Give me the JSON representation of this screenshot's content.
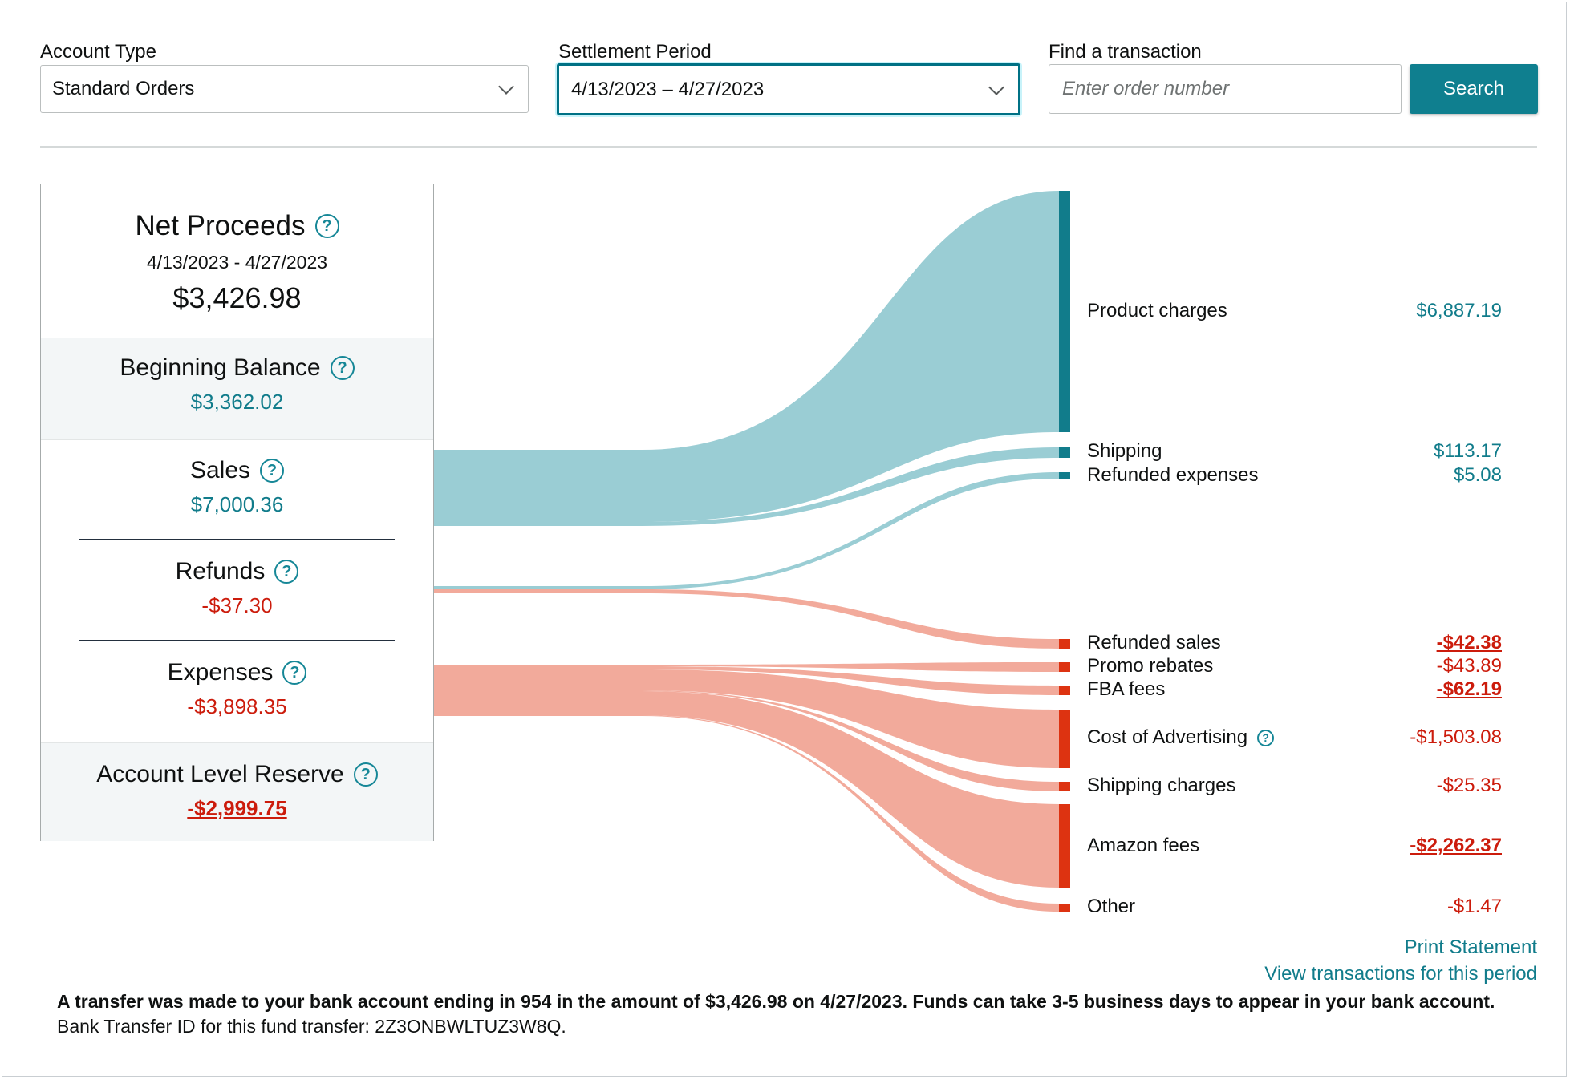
{
  "filters": {
    "account_type_label": "Account Type",
    "account_type_value": "Standard Orders",
    "settlement_label": "Settlement Period",
    "settlement_value": "4/13/2023 – 4/27/2023",
    "find_label": "Find a transaction",
    "find_placeholder": "Enter order number",
    "search_button": "Search"
  },
  "summary": {
    "net_proceeds_title": "Net Proceeds",
    "net_proceeds_dates": "4/13/2023 - 4/27/2023",
    "net_proceeds_value": "$3,426.98",
    "beginning_balance_title": "Beginning Balance",
    "beginning_balance_value": "$3,362.02",
    "sales_title": "Sales",
    "sales_value": "$7,000.36",
    "refunds_title": "Refunds",
    "refunds_value": "-$37.30",
    "expenses_title": "Expenses",
    "expenses_value": "-$3,898.35",
    "reserve_title": "Account Level Reserve",
    "reserve_value": "-$2,999.75"
  },
  "breakdown": [
    {
      "label": "Product charges",
      "amount": "$6,887.19",
      "group": "sales"
    },
    {
      "label": "Shipping",
      "amount": "$113.17",
      "group": "sales"
    },
    {
      "label": "Refunded expenses",
      "amount": "$5.08",
      "group": "refunds"
    },
    {
      "label": "Refunded sales",
      "amount": "-$42.38",
      "group": "refunds"
    },
    {
      "label": "Promo rebates",
      "amount": "-$43.89",
      "group": "expenses"
    },
    {
      "label": "FBA fees",
      "amount": "-$62.19",
      "group": "expenses"
    },
    {
      "label": "Cost of Advertising",
      "amount": "-$1,503.08",
      "group": "expenses"
    },
    {
      "label": "Shipping charges",
      "amount": "-$25.35",
      "group": "expenses"
    },
    {
      "label": "Amazon fees",
      "amount": "-$2,262.37",
      "group": "expenses"
    },
    {
      "label": "Other",
      "amount": "-$1.47",
      "group": "expenses"
    }
  ],
  "colors": {
    "positive_flow": "#9acdd4",
    "positive_bar": "#117c8b",
    "negative_flow": "#f2aa9b",
    "negative_bar": "#dd3311"
  },
  "links": {
    "print_statement": "Print Statement",
    "view_transactions": "View transactions for this period"
  },
  "footer": {
    "transfer_notice": "A transfer was made to your bank account ending in 954 in the amount of $3,426.98 on 4/27/2023. Funds can take 3-5 business days to appear in your bank account.",
    "transfer_id": "Bank Transfer ID for this fund transfer: 2Z3ONBWLTUZ3W8Q."
  }
}
